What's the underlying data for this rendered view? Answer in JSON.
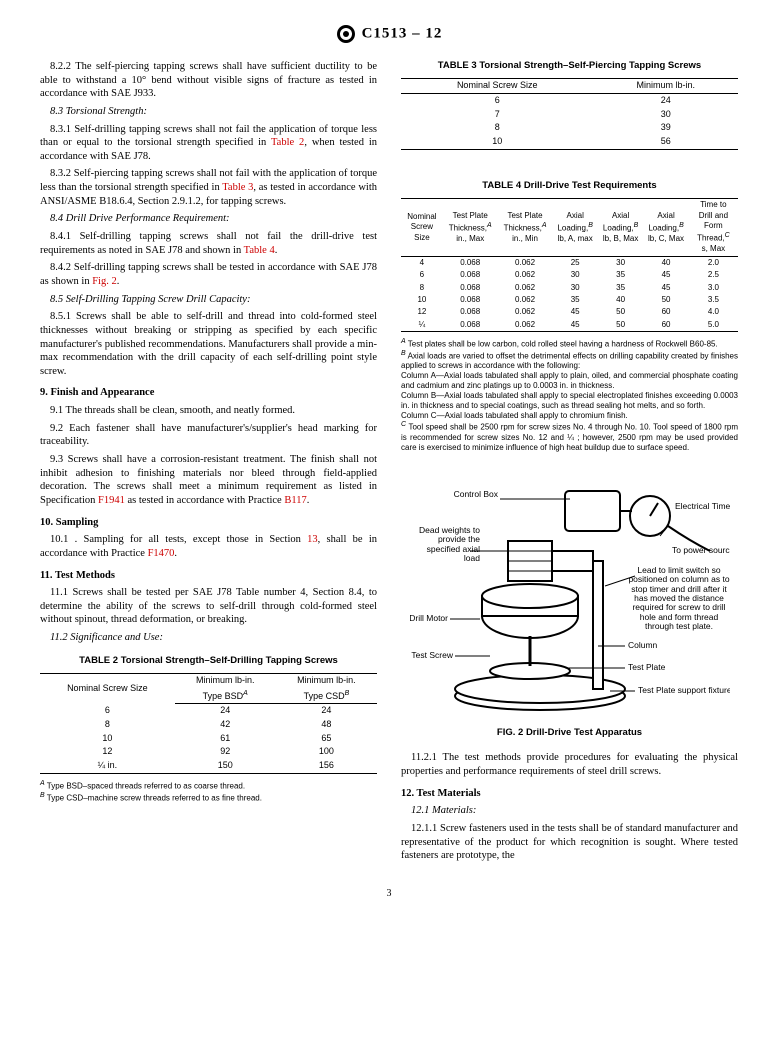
{
  "header": {
    "designation": "C1513 – 12"
  },
  "left": {
    "p822": "8.2.2 The self-piercing tapping screws shall have sufficient ductility to be able to withstand a 10° bend without visible signs of fracture as tested in accordance with SAE J933.",
    "h83": "8.3 Torsional Strength:",
    "p831a": "8.3.1 Self-drilling tapping screws shall not fail the application of torque less than or equal to the torsional strength specified in ",
    "ref_t2": "Table 2",
    "p831b": ", when tested in accordance with SAE J78.",
    "p832a": "8.3.2 Self-piercing tapping screws shall not fail with the application of torque less than the torsional strength specified in ",
    "ref_t3": "Table 3",
    "p832b": ", as tested in accordance with ANSI/ASME B18.6.4, Section 2.9.1.2, for tapping screws.",
    "h84": "8.4 Drill Drive Performance Requirement:",
    "p841a": "8.4.1 Self-drilling tapping screws shall not fail the drill-drive test requirements as noted in SAE J78 and shown in ",
    "ref_t4": "Table 4",
    "p841b": ".",
    "p842a": "8.4.2 Self-drilling tapping screws shall be tested in accordance with SAE J78 as shown in ",
    "ref_f2": "Fig. 2",
    "p842b": ".",
    "h85": "8.5 Self-Drilling Tapping Screw Drill Capacity:",
    "p851": "8.5.1 Screws shall be able to self-drill and thread into cold-formed steel thicknesses without breaking or stripping as specified by each specific manufacturer's published recommendations. Manufacturers shall provide a min-max recommendation with the drill capacity of each self-drilling point style screw.",
    "h9": "9. Finish and Appearance",
    "p91": "9.1 The threads shall be clean, smooth, and neatly formed.",
    "p92": "9.2 Each fastener shall have manufacturer's/supplier's head marking for traceability.",
    "p93a": "9.3 Screws shall have a corrosion-resistant treatment. The finish shall not inhibit adhesion to finishing materials nor bleed through field-applied decoration. The screws shall meet a minimum requirement as listed in Specification ",
    "ref_f1941": "F1941",
    "p93b": " as tested in accordance with Practice ",
    "ref_b117": "B117",
    "p93c": ".",
    "h10": "10. Sampling",
    "p101a": "10.1 . Sampling for all tests, except those in Section ",
    "ref_13": "13",
    "p101b": ", shall be in accordance with Practice ",
    "ref_f1470": "F1470",
    "p101c": ".",
    "h11": "11. Test Methods",
    "p111": "11.1 Screws shall be tested per SAE J78 Table number 4, Section 8.4, to determine the ability of the screws to self-drill through cold-formed steel without spinout, thread deformation, or breaking.",
    "p112": "11.2 Significance and Use:"
  },
  "table2": {
    "title": "TABLE 2 Torsional Strength–Self-Drilling Tapping Screws",
    "headers": [
      "Nominal Screw Size",
      "Minimum lb-in. Type BSD",
      "Minimum lb-in. Type CSD"
    ],
    "sup1": "A",
    "sup2": "B",
    "rows": [
      [
        "6",
        "24",
        "24"
      ],
      [
        "8",
        "42",
        "48"
      ],
      [
        "10",
        "61",
        "65"
      ],
      [
        "12",
        "92",
        "100"
      ],
      [
        "¼ in.",
        "150",
        "156"
      ]
    ],
    "footA": " Type BSD–spaced threads referred to as coarse thread.",
    "footB": " Type CSD–machine screw threads referred to as fine thread."
  },
  "table3": {
    "title": "TABLE 3 Torsional Strength–Self-Piercing Tapping Screws",
    "headers": [
      "Nominal Screw Size",
      "Minimum lb-in."
    ],
    "rows": [
      [
        "6",
        "24"
      ],
      [
        "7",
        "30"
      ],
      [
        "8",
        "39"
      ],
      [
        "10",
        "56"
      ]
    ]
  },
  "table4": {
    "title": "TABLE 4 Drill-Drive Test Requirements",
    "headers": [
      "Nominal Screw Size",
      "Test Plate Thickness, in., Max",
      "Test Plate Thickness, in., Min",
      "Axial Loading, lb, A, max",
      "Axial Loading, lb, B, Max",
      "Axial Loading, lb, C, Max",
      "Time to Drill and Form Thread, s, Max"
    ],
    "supA": "A",
    "supB": "B",
    "supC": "C",
    "h0": "Nominal Screw Size",
    "h1a": "Test Plate Thickness,",
    "h1b": "in., Max",
    "h2a": "Test Plate Thickness,",
    "h2b": "in., Min",
    "h3a": "Axial Loading,",
    "h3b": "lb, A, max",
    "h4a": "Axial Loading,",
    "h4b": "lb, B, Max",
    "h5a": "Axial Loading,",
    "h5b": "lb, C, Max",
    "h6a": "Time to Drill and Form Thread,",
    "h6b": "s, Max",
    "rows": [
      [
        "4",
        "0.068",
        "0.062",
        "25",
        "30",
        "40",
        "2.0"
      ],
      [
        "6",
        "0.068",
        "0.062",
        "30",
        "35",
        "45",
        "2.5"
      ],
      [
        "8",
        "0.068",
        "0.062",
        "30",
        "35",
        "45",
        "3.0"
      ],
      [
        "10",
        "0.068",
        "0.062",
        "35",
        "40",
        "50",
        "3.5"
      ],
      [
        "12",
        "0.068",
        "0.062",
        "45",
        "50",
        "60",
        "4.0"
      ],
      [
        "¼",
        "0.068",
        "0.062",
        "45",
        "50",
        "60",
        "5.0"
      ]
    ],
    "footA_pre": "A",
    "footA": " Test plates shall be low carbon, cold rolled steel having a hardness of Rockwell B60-85.",
    "footB_pre": "B",
    "footB": " Axial loads are varied to offset the detrimental effects on drilling capability created by finishes applied to screws in accordance with the following:",
    "footB_colA": "Column A—Axial loads tabulated shall apply to plain, oiled, and commercial phosphate coating and cadmium and zinc platings up to 0.0003 in. in thickness.",
    "footB_colB": "Column B—Axial loads tabulated shall apply to special electroplated finishes exceeding 0.0003 in. in thickness and to special coatings, such as thread sealing hot melts, and so forth.",
    "footB_colC": "Column C—Axial loads tabulated shall apply to chromium finish.",
    "footC_pre": "C",
    "footC": " Tool speed shall be 2500 rpm for screw sizes No. 4 through No. 10. Tool speed of 1800 rpm is recommended for screw sizes No. 12 and ¼ ; however, 2500 rpm may be used provided care is exercised to minimize influence of high heat buildup due to surface speed."
  },
  "figure2": {
    "caption": "FIG. 2 Drill-Drive Test Apparatus",
    "labels": {
      "control_box": "Control Box",
      "dead_weights": "Dead weights to provide the specified axial load",
      "electrical_timer": "Electrical Timer",
      "power": "To power source",
      "lead": "Lead to limit switch so positioned on column as to stop timer and drill after it has moved the distance required for screw to drill hole and form thread through test plate.",
      "drill_motor": "Drill Motor",
      "test_screw": "Test Screw",
      "column": "Column",
      "test_plate": "Test Plate",
      "fixture": "Test Plate support fixture"
    }
  },
  "right": {
    "p1121": "11.2.1 The test methods provide procedures for evaluating the physical properties and performance requirements of steel drill screws.",
    "h12": "12. Test Materials",
    "h121": "12.1 Materials:",
    "p1211": "12.1.1 Screw fasteners used in the tests shall be of standard manufacturer and representative of the product for which recognition is sought. Where tested fasteners are prototype, the"
  },
  "page_num": "3"
}
